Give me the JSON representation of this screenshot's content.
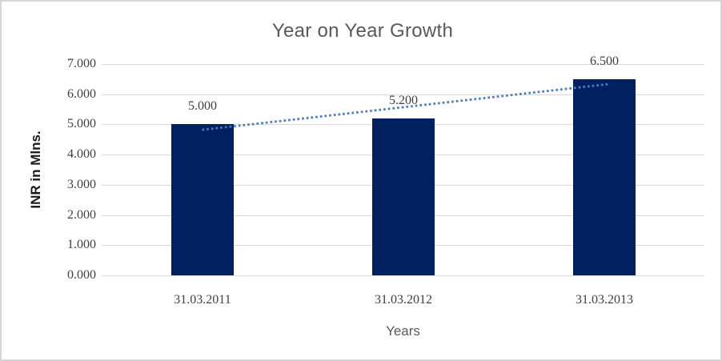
{
  "window": {
    "background": "#ffffff",
    "border_color": "#d6d6d6"
  },
  "chart_data": {
    "type": "bar",
    "title": "Year on Year Growth",
    "xlabel": "Years",
    "ylabel": "INR in Mlns.",
    "categories": [
      "31.03.2011",
      "31.03.2012",
      "31.03.2013"
    ],
    "values": [
      5.0,
      5.2,
      6.5
    ],
    "data_labels": [
      "5.000",
      "5.200",
      "6.500"
    ],
    "ylim": [
      0,
      7
    ],
    "ytick_step": 1,
    "ytick_labels": [
      "0.000",
      "1.000",
      "2.000",
      "3.000",
      "4.000",
      "5.000",
      "6.000",
      "7.000"
    ],
    "grid": true,
    "legend": "none",
    "bar_color": "#002060",
    "gridline_color": "#d9d9d9",
    "tick_label_color": "#404040",
    "title_color": "#595959",
    "axis_title_color": "#595959",
    "trendline": {
      "type": "linear",
      "style": "dotted",
      "color": "#4a7ebb",
      "x_start": 1.0,
      "y_start": 4.82,
      "x_end": 3.03,
      "y_end": 6.34
    }
  }
}
